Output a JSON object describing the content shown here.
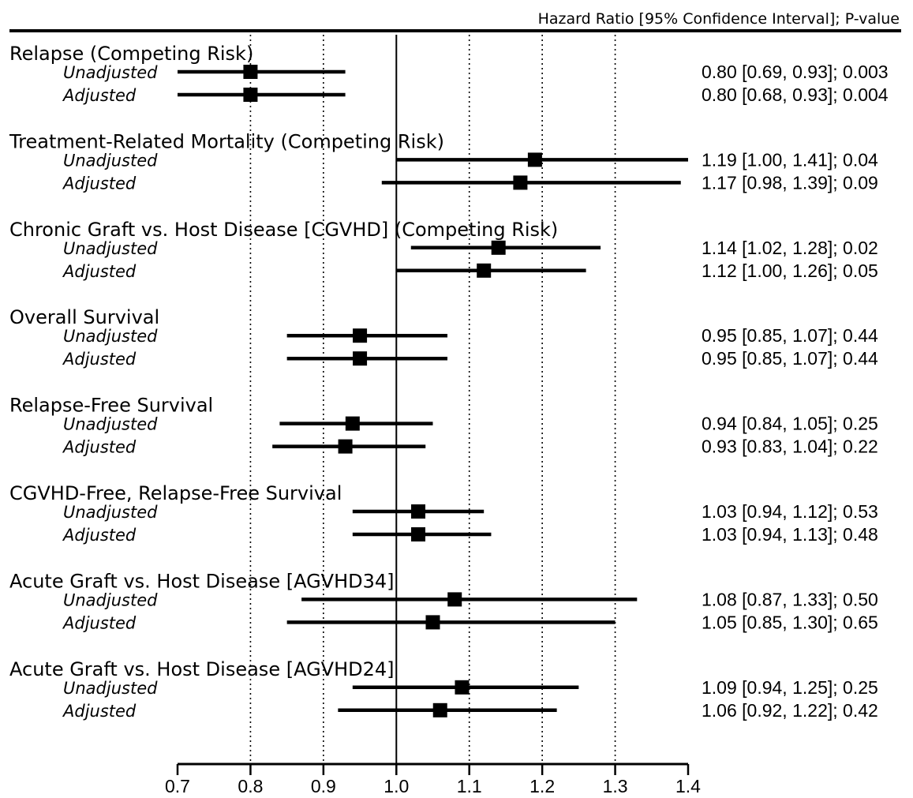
{
  "chart_data": {
    "type": "forest",
    "header": "Hazard Ratio [95% Confidence Interval]; P-value",
    "reference_value": 1.0,
    "dotted_gridlines": [
      0.8,
      0.9,
      1.1,
      1.2,
      1.3
    ],
    "xlim": [
      0.7,
      1.4
    ],
    "ticks": [
      "0.7",
      "0.8",
      "0.9",
      "1.0",
      "1.1",
      "1.2",
      "1.3",
      "1.4"
    ],
    "tick_values": [
      0.7,
      0.8,
      0.9,
      1.0,
      1.1,
      1.2,
      1.3,
      1.4
    ],
    "groups": [
      {
        "title": "Relapse (Competing Risk)",
        "rows": [
          {
            "label": "Unadjusted",
            "estimate": 0.8,
            "lower": 0.69,
            "upper": 0.93,
            "text": "0.80 [0.69, 0.93]; 0.003"
          },
          {
            "label": "Adjusted",
            "estimate": 0.8,
            "lower": 0.68,
            "upper": 0.93,
            "text": "0.80 [0.68, 0.93]; 0.004"
          }
        ]
      },
      {
        "title": "Treatment-Related Mortality (Competing Risk)",
        "rows": [
          {
            "label": "Unadjusted",
            "estimate": 1.19,
            "lower": 1.0,
            "upper": 1.41,
            "text": "1.19 [1.00, 1.41]; 0.04"
          },
          {
            "label": "Adjusted",
            "estimate": 1.17,
            "lower": 0.98,
            "upper": 1.39,
            "text": "1.17 [0.98, 1.39]; 0.09"
          }
        ]
      },
      {
        "title": "Chronic Graft vs. Host Disease [CGVHD] (Competing Risk)",
        "rows": [
          {
            "label": "Unadjusted",
            "estimate": 1.14,
            "lower": 1.02,
            "upper": 1.28,
            "text": "1.14 [1.02, 1.28]; 0.02"
          },
          {
            "label": "Adjusted",
            "estimate": 1.12,
            "lower": 1.0,
            "upper": 1.26,
            "text": "1.12 [1.00, 1.26]; 0.05"
          }
        ]
      },
      {
        "title": "Overall Survival",
        "rows": [
          {
            "label": "Unadjusted",
            "estimate": 0.95,
            "lower": 0.85,
            "upper": 1.07,
            "text": "0.95 [0.85, 1.07]; 0.44"
          },
          {
            "label": "Adjusted",
            "estimate": 0.95,
            "lower": 0.85,
            "upper": 1.07,
            "text": "0.95 [0.85, 1.07]; 0.44"
          }
        ]
      },
      {
        "title": "Relapse-Free Survival",
        "rows": [
          {
            "label": "Unadjusted",
            "estimate": 0.94,
            "lower": 0.84,
            "upper": 1.05,
            "text": "0.94 [0.84, 1.05]; 0.25"
          },
          {
            "label": "Adjusted",
            "estimate": 0.93,
            "lower": 0.83,
            "upper": 1.04,
            "text": "0.93 [0.83, 1.04]; 0.22"
          }
        ]
      },
      {
        "title": "CGVHD-Free, Relapse-Free Survival",
        "rows": [
          {
            "label": "Unadjusted",
            "estimate": 1.03,
            "lower": 0.94,
            "upper": 1.12,
            "text": "1.03 [0.94, 1.12]; 0.53"
          },
          {
            "label": "Adjusted",
            "estimate": 1.03,
            "lower": 0.94,
            "upper": 1.13,
            "text": "1.03 [0.94, 1.13]; 0.48"
          }
        ]
      },
      {
        "title": "Acute Graft vs. Host Disease [AGVHD34]",
        "rows": [
          {
            "label": "Unadjusted",
            "estimate": 1.08,
            "lower": 0.87,
            "upper": 1.33,
            "text": "1.08 [0.87, 1.33]; 0.50"
          },
          {
            "label": "Adjusted",
            "estimate": 1.05,
            "lower": 0.85,
            "upper": 1.3,
            "text": "1.05 [0.85, 1.30]; 0.65"
          }
        ]
      },
      {
        "title": "Acute Graft vs. Host Disease [AGVHD24]",
        "rows": [
          {
            "label": "Unadjusted",
            "estimate": 1.09,
            "lower": 0.94,
            "upper": 1.25,
            "text": "1.09 [0.94, 1.25]; 0.25"
          },
          {
            "label": "Adjusted",
            "estimate": 1.06,
            "lower": 0.92,
            "upper": 1.22,
            "text": "1.06 [0.92, 1.22]; 0.42"
          }
        ]
      }
    ]
  }
}
